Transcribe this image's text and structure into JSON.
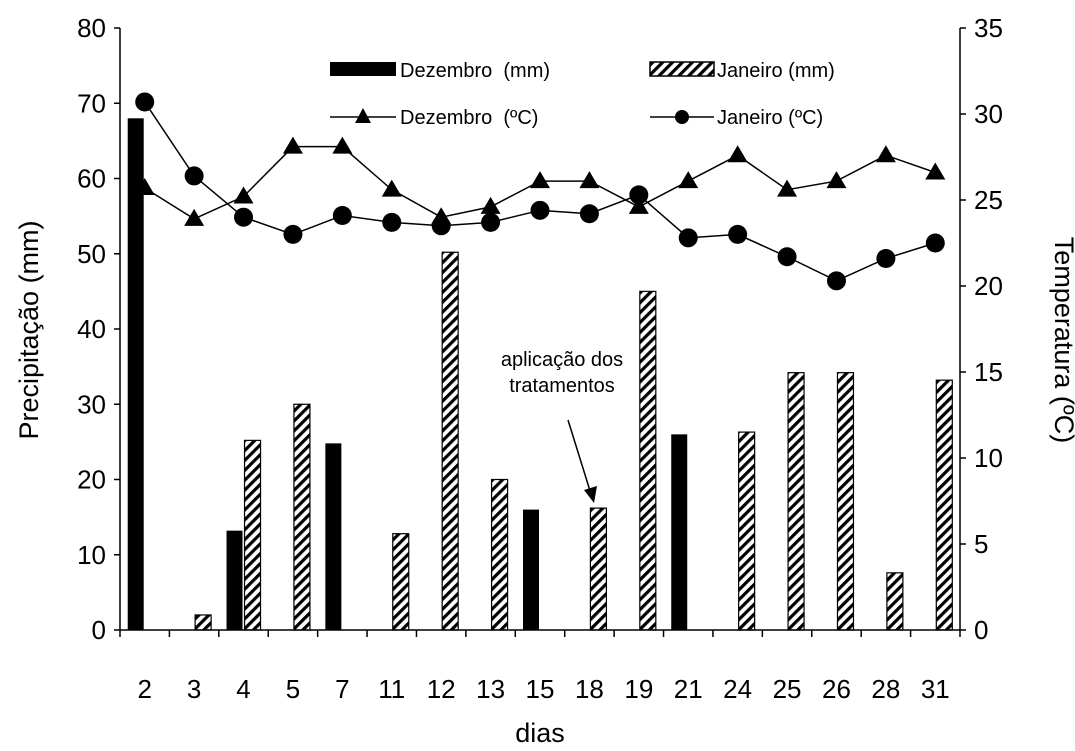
{
  "chart_data": {
    "type": "bar",
    "xlabel": "dias",
    "ylabel_left": "Precipitação (mm)",
    "ylabel_right": "Temperatura  (ºC)",
    "categories": [
      "2",
      "3",
      "4",
      "5",
      "7",
      "11",
      "12",
      "13",
      "15",
      "18",
      "19",
      "21",
      "24",
      "25",
      "26",
      "28",
      "31"
    ],
    "ylim_left": [
      0,
      80
    ],
    "yticks_left": [
      "0",
      "10",
      "20",
      "30",
      "40",
      "50",
      "60",
      "70",
      "80"
    ],
    "ylim_right": [
      0,
      35
    ],
    "yticks_right": [
      "0",
      "5",
      "10",
      "15",
      "20",
      "25",
      "30",
      "35"
    ],
    "bar_series": [
      {
        "name": "Dezembro  (mm)",
        "fill": "solid",
        "color": "#000000",
        "values": [
          68,
          0,
          13.2,
          0,
          24.8,
          0,
          0,
          0,
          16,
          0,
          0,
          26,
          0,
          0,
          0,
          0,
          0
        ]
      },
      {
        "name": "Janeiro (mm)",
        "fill": "hatched",
        "color": "#000000",
        "values": [
          0,
          2,
          25.2,
          30,
          0,
          12.8,
          50.2,
          20,
          0,
          16.2,
          45,
          0,
          26.3,
          34.2,
          34.2,
          7.6,
          33.2
        ]
      }
    ],
    "line_series": [
      {
        "name": "Dezembro  (ºC)",
        "marker": "triangle",
        "axis": "right",
        "values": [
          25.7,
          23.9,
          25.2,
          28.1,
          28.1,
          25.6,
          24,
          24.6,
          26.1,
          26.1,
          24.6,
          26.1,
          27.6,
          25.6,
          26.1,
          27.6,
          26.6
        ]
      },
      {
        "name": "Janeiro (ºC)",
        "marker": "circle",
        "axis": "right",
        "values": [
          30.7,
          26.4,
          24,
          23,
          24.1,
          23.7,
          23.5,
          23.7,
          24.4,
          24.2,
          25.3,
          22.8,
          23,
          21.7,
          20.3,
          21.6,
          22.5
        ]
      }
    ],
    "annotation": {
      "lines": [
        "aplicação dos",
        "tratamentos"
      ],
      "points_to": "18"
    },
    "legend": "top-center",
    "grid": false
  }
}
